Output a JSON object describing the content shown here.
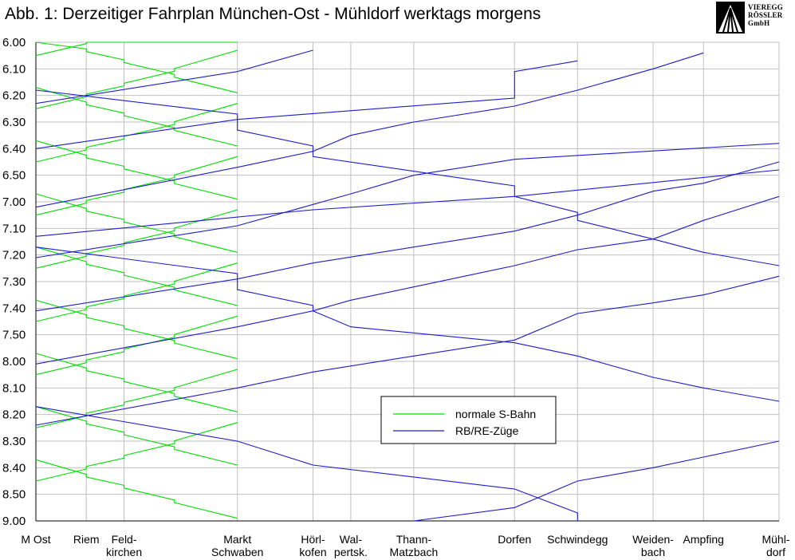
{
  "title": "Abb. 1: Derzeitiger Fahrplan München-Ost - Mühldorf werktags morgens",
  "logo": {
    "lines": [
      "VIEREGG",
      "RÖSSLER",
      "GmbH"
    ]
  },
  "colors": {
    "sbahn": "#00dd00",
    "rb": "#1c1ccc",
    "grid": "#c0c0c0",
    "axis": "#000000"
  },
  "chart_data": {
    "type": "line",
    "title": "Abb. 1: Derzeitiger Fahrplan München-Ost - Mühldorf werktags morgens",
    "x_axis": {
      "stations": [
        {
          "label": [
            "M Ost"
          ],
          "km": 0
        },
        {
          "label": [
            "Riem"
          ],
          "km": 4
        },
        {
          "label": [
            "Feld-",
            "kirchen"
          ],
          "km": 7
        },
        {
          "label": [
            "Markt",
            "Schwaben"
          ],
          "km": 16
        },
        {
          "label": [
            "Hörl-",
            "kofen"
          ],
          "km": 22
        },
        {
          "label": [
            "Wal-",
            "pertsk."
          ],
          "km": 25
        },
        {
          "label": [
            "Thann-",
            "Matzbach"
          ],
          "km": 30
        },
        {
          "label": [
            "Dorfen"
          ],
          "km": 38
        },
        {
          "label": [
            "Schwindegg"
          ],
          "km": 43
        },
        {
          "label": [
            "Weiden-",
            "bach"
          ],
          "km": 49
        },
        {
          "label": [
            "Ampfing"
          ],
          "km": 53
        },
        {
          "label": [
            "Mühl-",
            "dorf"
          ],
          "km": 59
        }
      ]
    },
    "y_axis": {
      "inverted": true,
      "range": [
        "6.00",
        "9.00"
      ],
      "ticks": [
        "6.00",
        "6.10",
        "6.20",
        "6.30",
        "6.40",
        "6.50",
        "7.00",
        "7.10",
        "7.20",
        "7.30",
        "7.40",
        "7.50",
        "8.00",
        "8.10",
        "8.20",
        "8.30",
        "8.40",
        "8.50",
        "9.00"
      ]
    },
    "grid": true,
    "legend": {
      "position": "center-right",
      "entries": [
        {
          "name": "normale S-Bahn",
          "color": "#00dd00"
        },
        {
          "name": "RB/RE-Züge",
          "color": "#1c1ccc"
        }
      ]
    },
    "sbahn": {
      "stations_km": [
        0,
        4,
        7,
        11,
        16
      ],
      "outbound_starts": [
        "5.57",
        "6.17",
        "6.37",
        "6.57",
        "7.17",
        "7.37",
        "7.57",
        "8.17",
        "8.37"
      ],
      "inbound_starts": [
        "5.43",
        "6.03",
        "6.23",
        "6.43",
        "7.03",
        "7.23",
        "7.43",
        "8.03",
        "8.23"
      ],
      "run_min": 22
    },
    "rb_series": [
      {
        "name": "RB",
        "points": [
          [
            "6.23",
            0
          ],
          [
            "6.11",
            16
          ],
          [
            "6.03",
            22
          ]
        ]
      },
      {
        "name": "RB",
        "points": [
          [
            "6.40",
            0
          ],
          [
            "6.29",
            16
          ],
          [
            "6.21",
            38
          ],
          [
            "6.11",
            38
          ],
          [
            "6.07",
            43
          ]
        ]
      },
      {
        "name": "RB",
        "points": [
          [
            "7.02",
            0
          ],
          [
            "6.47",
            16
          ],
          [
            "6.41",
            22
          ],
          [
            "6.35",
            25
          ],
          [
            "6.30",
            30
          ],
          [
            "6.24",
            38
          ],
          [
            "6.18",
            43
          ],
          [
            "6.10",
            49
          ],
          [
            "6.04",
            53
          ]
        ]
      },
      {
        "name": "RE",
        "points": [
          [
            "7.13",
            0
          ],
          [
            "7.03",
            22
          ],
          [
            "6.58",
            38
          ],
          [
            "6.48",
            59
          ]
        ]
      },
      {
        "name": "RB",
        "points": [
          [
            "7.21",
            0
          ],
          [
            "7.09",
            16
          ],
          [
            "7.01",
            22
          ],
          [
            "6.57",
            25
          ],
          [
            "6.50",
            30
          ],
          [
            "6.44",
            38
          ],
          [
            "6.38",
            59
          ]
        ]
      },
      {
        "name": "RB",
        "points": [
          [
            "7.41",
            0
          ],
          [
            "7.29",
            16
          ],
          [
            "7.23",
            22
          ],
          [
            "7.17",
            30
          ],
          [
            "7.11",
            38
          ],
          [
            "7.05",
            43
          ],
          [
            "6.56",
            49
          ],
          [
            "6.53",
            53
          ],
          [
            "6.45",
            59
          ]
        ]
      },
      {
        "name": "RB",
        "points": [
          [
            "8.01",
            0
          ],
          [
            "7.47",
            16
          ],
          [
            "7.41",
            22
          ],
          [
            "7.37",
            25
          ],
          [
            "7.32",
            30
          ],
          [
            "7.24",
            38
          ],
          [
            "7.18",
            43
          ],
          [
            "7.14",
            49
          ],
          [
            "7.07",
            53
          ],
          [
            "6.58",
            59
          ]
        ]
      },
      {
        "name": "RB",
        "points": [
          [
            "8.24",
            0
          ],
          [
            "8.10",
            16
          ],
          [
            "8.04",
            22
          ],
          [
            "7.58",
            30
          ],
          [
            "7.52",
            38
          ],
          [
            "7.42",
            43
          ],
          [
            "7.38",
            49
          ],
          [
            "7.35",
            53
          ],
          [
            "7.28",
            59
          ]
        ]
      },
      {
        "name": "RB",
        "points": [
          [
            "9.00",
            30
          ],
          [
            "8.55",
            38
          ],
          [
            "8.45",
            43
          ],
          [
            "8.40",
            49
          ],
          [
            "8.36",
            53
          ],
          [
            "8.30",
            59
          ]
        ]
      },
      {
        "name": "RB",
        "points": [
          [
            "6.18",
            0
          ],
          [
            "6.27",
            16
          ],
          [
            "6.33",
            16
          ],
          [
            "6.39",
            22
          ],
          [
            "6.43",
            22
          ],
          [
            "6.54",
            38
          ],
          [
            "6.58",
            38
          ],
          [
            "7.04",
            43
          ],
          [
            "7.07",
            43
          ],
          [
            "7.14",
            49
          ],
          [
            "7.19",
            53
          ],
          [
            "7.24",
            59
          ]
        ]
      },
      {
        "name": "RB",
        "points": [
          [
            "7.17",
            0
          ],
          [
            "7.27",
            16
          ],
          [
            "7.33",
            16
          ],
          [
            "7.39",
            22
          ],
          [
            "7.41",
            22
          ],
          [
            "7.47",
            25
          ],
          [
            "7.53",
            38
          ],
          [
            "7.58",
            43
          ],
          [
            "8.06",
            49
          ],
          [
            "8.10",
            53
          ],
          [
            "8.15",
            59
          ]
        ]
      },
      {
        "name": "RB",
        "points": [
          [
            "8.17",
            0
          ],
          [
            "8.30",
            16
          ],
          [
            "8.39",
            22
          ],
          [
            "8.48",
            38
          ],
          [
            "8.57",
            43
          ],
          [
            "9.00",
            43
          ]
        ]
      }
    ]
  }
}
